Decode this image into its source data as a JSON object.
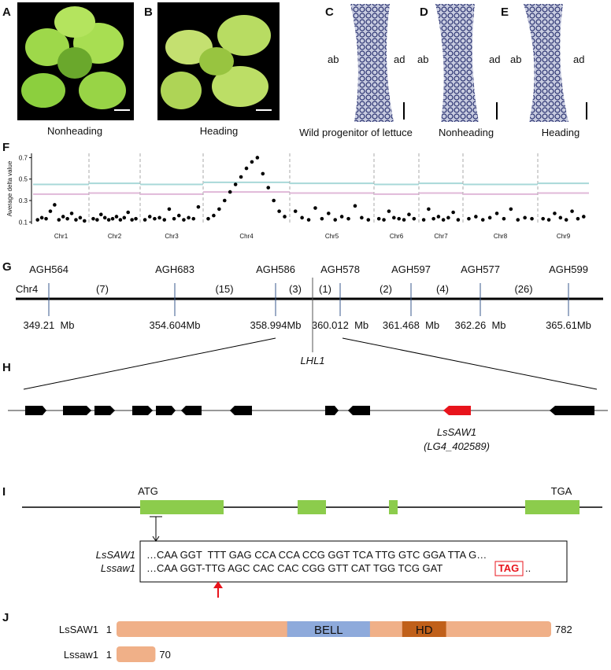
{
  "panels": {
    "A": {
      "label": "A",
      "caption": "Nonheading"
    },
    "B": {
      "label": "B",
      "caption": "Heading"
    },
    "C": {
      "label": "C",
      "caption": "Wild progenitor of lettuce",
      "ab": "ab",
      "ad": "ad"
    },
    "D": {
      "label": "D",
      "caption": "Nonheading",
      "ab": "ab",
      "ad": "ad"
    },
    "E": {
      "label": "E",
      "caption": "Heading",
      "ab": "ab",
      "ad": "ad"
    },
    "F": {
      "label": "F",
      "chart_data": {
        "type": "scatter",
        "y_label": "Average delta value",
        "ylim": [
          0.08,
          0.74
        ],
        "yticks": [
          0.1,
          0.3,
          0.5,
          0.7
        ],
        "categories": [
          "Chr1",
          "Chr2",
          "Chr3",
          "Chr4",
          "Chr5",
          "Chr6",
          "Chr7",
          "Chr8",
          "Chr9"
        ],
        "series": [
          {
            "color": "#000000",
            "values": [
              [
                0.12,
                0.14,
                0.13,
                0.2,
                0.26,
                0.12,
                0.15,
                0.13,
                0.18,
                0.12,
                0.14,
                0.11
              ],
              [
                0.13,
                0.12,
                0.17,
                0.14,
                0.12,
                0.13,
                0.15,
                0.12,
                0.14,
                0.19,
                0.12,
                0.13
              ],
              [
                0.12,
                0.15,
                0.13,
                0.14,
                0.12,
                0.22,
                0.13,
                0.16,
                0.12,
                0.14,
                0.13,
                0.24
              ],
              [
                0.13,
                0.16,
                0.22,
                0.3,
                0.38,
                0.45,
                0.52,
                0.6,
                0.66,
                0.7,
                0.55,
                0.42,
                0.3,
                0.2,
                0.15
              ],
              [
                0.2,
                0.14,
                0.12,
                0.23,
                0.13,
                0.18,
                0.12,
                0.15,
                0.13,
                0.25,
                0.14,
                0.12
              ],
              [
                0.13,
                0.12,
                0.2,
                0.14,
                0.13,
                0.12,
                0.17,
                0.13
              ],
              [
                0.12,
                0.22,
                0.13,
                0.15,
                0.12,
                0.14,
                0.19,
                0.12
              ],
              [
                0.13,
                0.15,
                0.12,
                0.14,
                0.18,
                0.13,
                0.22,
                0.12,
                0.14,
                0.13
              ],
              [
                0.13,
                0.12,
                0.18,
                0.14,
                0.12,
                0.2,
                0.13,
                0.15
              ]
            ]
          },
          {
            "color": "#a8d8d8",
            "values": [
              0.45,
              0.46,
              0.45,
              0.47,
              0.46,
              0.45,
              0.46,
              0.45,
              0.46
            ]
          },
          {
            "color": "#e0b8d8",
            "values": [
              0.36,
              0.37,
              0.36,
              0.38,
              0.37,
              0.36,
              0.37,
              0.36,
              0.37
            ]
          }
        ]
      }
    },
    "G": {
      "label": "G",
      "chromosome": "Chr4",
      "gene": "LHL1",
      "markers": [
        "AGH564",
        "AGH683",
        "AGH586",
        "AGH578",
        "AGH597",
        "AGH577",
        "AGH599"
      ],
      "positions": [
        "349.21  Mb",
        "354.604Mb",
        "358.994Mb",
        "360.012  Mb",
        "361.468  Mb",
        "362.26  Mb",
        "365.61Mb"
      ],
      "recombinants": [
        "(7)",
        "(15)",
        "(3)",
        "(1)",
        "(2)",
        "(4)",
        "(26)"
      ]
    },
    "H": {
      "label": "H",
      "gene": "LsSAW1",
      "gene_id": "(LG4_402589)"
    },
    "I": {
      "label": "I",
      "start": "ATG",
      "stop": "TGA",
      "wt_name": "LsSAW1",
      "wt_seq": "…CAA GGT  TTT GAG CCA CCA CCG GGT TCA TTG GTC GGA TTA G…",
      "mut_name": "Lssaw1",
      "mut_seq": "…CAA GGT-TTG AGC CAC CAC CGG GTT CAT TGG TCG GAT",
      "mut_stop": "TAG",
      "mut_end": ".."
    },
    "J": {
      "label": "J",
      "proteins": [
        {
          "name": "LsSAW1",
          "start": 1,
          "length": 782,
          "domains": [
            {
              "name": "BELL",
              "from": 307,
              "to": 456
            },
            {
              "name": "HD",
              "from": 514,
              "to": 593
            }
          ]
        },
        {
          "name": "Lssaw1",
          "start": 1,
          "length": 70,
          "domains": []
        }
      ]
    }
  }
}
